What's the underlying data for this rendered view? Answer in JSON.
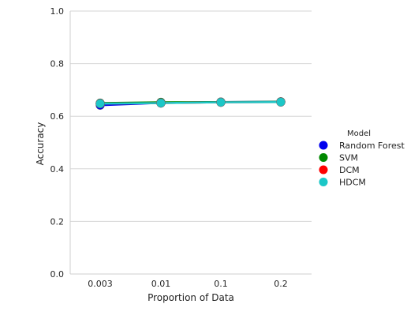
{
  "chart_data": {
    "type": "line",
    "title": "",
    "xlabel": "Proportion of Data",
    "ylabel": "Accuracy",
    "categories": [
      "0.003",
      "0.01",
      "0.1",
      "0.2"
    ],
    "ylim": [
      0.0,
      1.0
    ],
    "yticks": [
      "0.0",
      "0.2",
      "0.4",
      "0.6",
      "0.8",
      "1.0"
    ],
    "grid": true,
    "legend": {
      "title": "Model",
      "placement": "right"
    },
    "series": [
      {
        "name": "Random Forest",
        "color": "#0000ee",
        "values": [
          0.642,
          0.651,
          0.654,
          0.655
        ]
      },
      {
        "name": "SVM",
        "color": "#008800",
        "values": [
          0.65,
          0.653,
          0.654,
          0.655
        ]
      },
      {
        "name": "DCM",
        "color": "#ff0000",
        "values": [
          0.648,
          0.65,
          0.653,
          0.654
        ]
      },
      {
        "name": "HDCM",
        "color": "#1cc7c7",
        "values": [
          0.648,
          0.65,
          0.653,
          0.654
        ]
      }
    ]
  }
}
